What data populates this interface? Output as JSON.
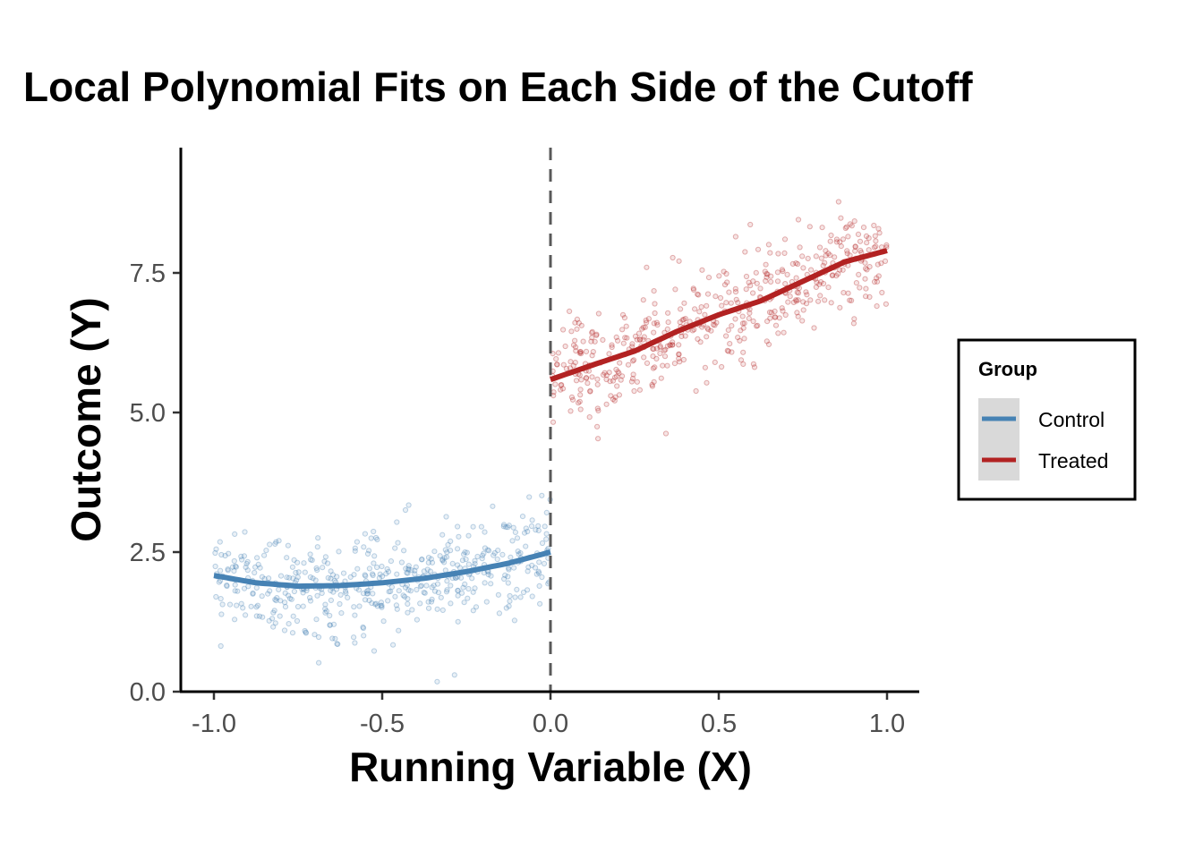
{
  "chart_data": {
    "type": "scatter",
    "title": "Local Polynomial Fits on Each Side of the Cutoff",
    "xlabel": "Running Variable (X)",
    "ylabel": "Outcome (Y)",
    "xlim": [
      -1.1,
      1.1
    ],
    "ylim": [
      0,
      9.6
    ],
    "xticks": [
      -1.0,
      -0.5,
      0.0,
      0.5,
      1.0
    ],
    "xtick_labels": [
      "-1.0",
      "-0.5",
      "0.0",
      "0.5",
      "1.0"
    ],
    "yticks": [
      0,
      2.5,
      5.0,
      7.5
    ],
    "ytick_labels": [
      "0.0",
      "2.5",
      "5.0",
      "7.5"
    ],
    "grid": false,
    "cutoff": 0.0,
    "legend": {
      "title": "Group",
      "placement": "right"
    },
    "series": [
      {
        "name": "Control",
        "color": "#4682B4",
        "fit_x": [
          -1.0,
          -0.875,
          -0.75,
          -0.625,
          -0.5,
          -0.375,
          -0.25,
          -0.125,
          0.0
        ],
        "fit_y": [
          2.08,
          1.95,
          1.89,
          1.9,
          1.95,
          2.03,
          2.15,
          2.3,
          2.5
        ],
        "scatter_n": 500,
        "scatter_noise_sd": 0.45
      },
      {
        "name": "Treated",
        "color": "#B22222",
        "fit_x": [
          0.0,
          0.125,
          0.25,
          0.375,
          0.5,
          0.625,
          0.75,
          0.875,
          1.0
        ],
        "fit_y": [
          5.59,
          5.85,
          6.1,
          6.45,
          6.75,
          7.0,
          7.35,
          7.7,
          7.9
        ],
        "scatter_n": 500,
        "scatter_noise_sd": 0.45
      }
    ]
  }
}
